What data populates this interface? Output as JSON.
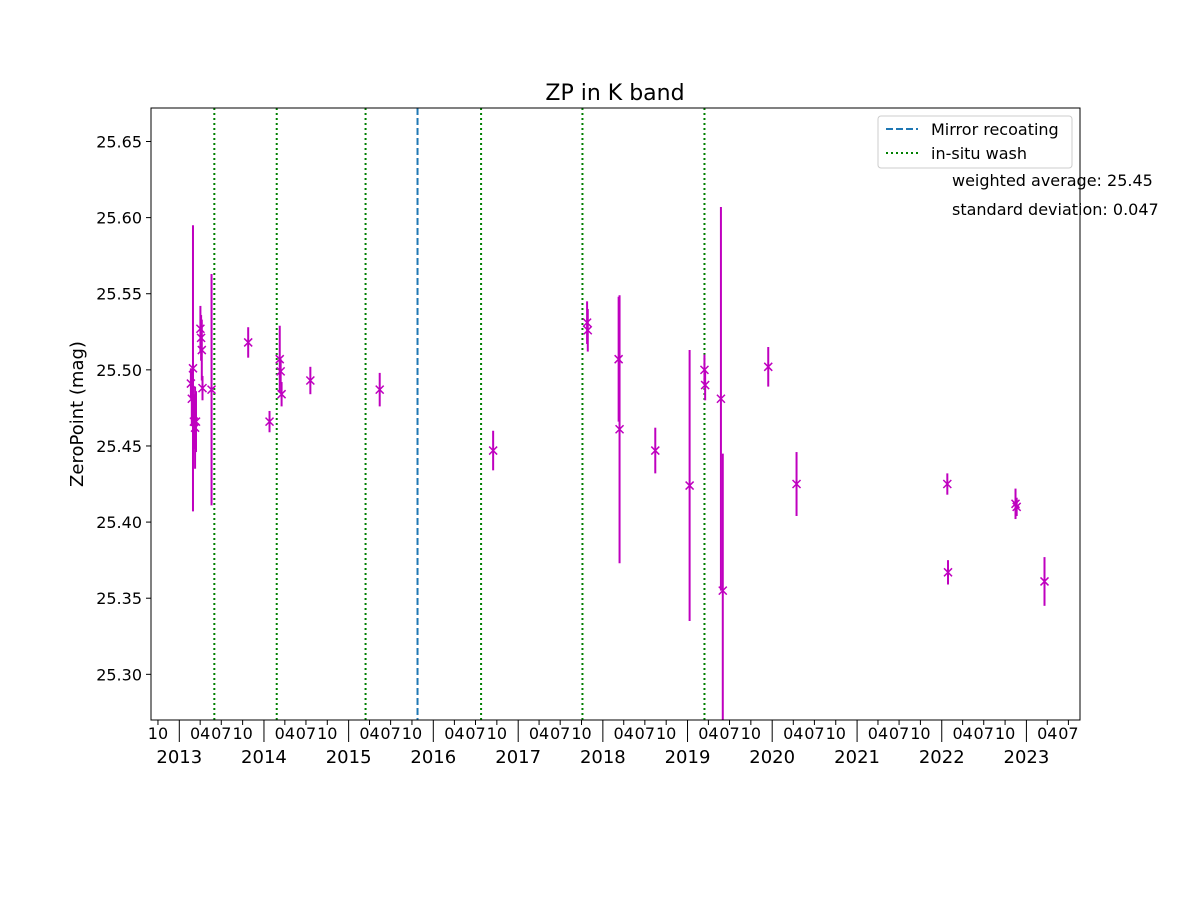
{
  "chart_data": {
    "type": "scatter",
    "title": "ZP in K band",
    "ylabel": "ZeroPoint (mag)",
    "xlabel": "",
    "xlim": [
      "2012-09-01",
      "2023-08-20"
    ],
    "ylim": [
      25.27,
      25.672
    ],
    "yticks": [
      25.3,
      25.35,
      25.4,
      25.45,
      25.5,
      25.55,
      25.6,
      25.65
    ],
    "ytick_labels": [
      "25.30",
      "25.35",
      "25.40",
      "25.45",
      "25.50",
      "25.55",
      "25.60",
      "25.65"
    ],
    "year_ticks": [
      "2013",
      "2014",
      "2015",
      "2016",
      "2017",
      "2018",
      "2019",
      "2020",
      "2021",
      "2022",
      "2023"
    ],
    "month_ticks": [
      "04",
      "07",
      "10"
    ],
    "first_month_tick": {
      "date": "2012-10-01",
      "label": "10"
    },
    "series": [
      {
        "marker": "x",
        "color": "#bf00bf",
        "points": [
          {
            "x": "2013-02-20",
            "y": 25.491,
            "err": 0.01
          },
          {
            "x": "2013-02-24",
            "y": 25.481,
            "err": 0.018
          },
          {
            "x": "2013-03-01",
            "y": 25.501,
            "err": 0.094
          },
          {
            "x": "2013-03-05",
            "y": 25.466,
            "err": 0.018
          },
          {
            "x": "2013-03-10",
            "y": 25.462,
            "err": 0.027
          },
          {
            "x": "2013-03-14",
            "y": 25.466,
            "err": 0.02
          },
          {
            "x": "2013-04-02",
            "y": 25.527,
            "err": 0.015
          },
          {
            "x": "2013-04-05",
            "y": 25.521,
            "err": 0.015
          },
          {
            "x": "2013-04-08",
            "y": 25.513,
            "err": 0.02
          },
          {
            "x": "2013-04-11",
            "y": 25.488,
            "err": 0.008
          },
          {
            "x": "2013-05-20",
            "y": 25.487,
            "err": 0.076
          },
          {
            "x": "2013-10-25",
            "y": 25.518,
            "err": 0.01
          },
          {
            "x": "2014-01-25",
            "y": 25.466,
            "err": 0.007
          },
          {
            "x": "2014-03-10",
            "y": 25.507,
            "err": 0.022
          },
          {
            "x": "2014-03-14",
            "y": 25.499,
            "err": 0.008
          },
          {
            "x": "2014-03-18",
            "y": 25.484,
            "err": 0.008
          },
          {
            "x": "2014-07-20",
            "y": 25.493,
            "err": 0.009
          },
          {
            "x": "2015-05-15",
            "y": 25.487,
            "err": 0.011
          },
          {
            "x": "2016-09-15",
            "y": 25.447,
            "err": 0.013
          },
          {
            "x": "2017-10-25",
            "y": 25.531,
            "err": 0.014
          },
          {
            "x": "2017-10-28",
            "y": 25.526,
            "err": 0.014
          },
          {
            "x": "2018-03-10",
            "y": 25.507,
            "err": 0.041
          },
          {
            "x": "2018-03-14",
            "y": 25.461,
            "err": 0.088
          },
          {
            "x": "2018-08-15",
            "y": 25.447,
            "err": 0.015
          },
          {
            "x": "2019-01-10",
            "y": 25.424,
            "err": 0.089
          },
          {
            "x": "2019-03-15",
            "y": 25.5,
            "err": 0.01
          },
          {
            "x": "2019-03-18",
            "y": 25.49,
            "err": 0.01
          },
          {
            "x": "2019-05-25",
            "y": 25.481,
            "err": 0.126
          },
          {
            "x": "2019-06-02",
            "y": 25.355,
            "err": 0.09
          },
          {
            "x": "2019-12-15",
            "y": 25.502,
            "err": 0.013
          },
          {
            "x": "2020-04-15",
            "y": 25.425,
            "err": 0.021
          },
          {
            "x": "2022-01-25",
            "y": 25.425,
            "err": 0.007
          },
          {
            "x": "2022-01-28",
            "y": 25.367,
            "err": 0.008
          },
          {
            "x": "2022-11-15",
            "y": 25.412,
            "err": 0.01
          },
          {
            "x": "2022-11-20",
            "y": 25.41,
            "err": 0.006
          },
          {
            "x": "2023-03-20",
            "y": 25.361,
            "err": 0.016
          }
        ]
      }
    ],
    "vlines": [
      {
        "x": "2015-10-25",
        "style": "dashed",
        "color": "#1f77b4",
        "legend": "Mirror recoating"
      },
      {
        "x": "2013-06-01",
        "style": "dotted",
        "color": "#008000",
        "legend": "in-situ wash"
      },
      {
        "x": "2014-02-25",
        "style": "dotted",
        "color": "#008000"
      },
      {
        "x": "2015-03-15",
        "style": "dotted",
        "color": "#008000"
      },
      {
        "x": "2016-07-25",
        "style": "dotted",
        "color": "#008000"
      },
      {
        "x": "2017-10-05",
        "style": "dotted",
        "color": "#008000"
      },
      {
        "x": "2019-03-15",
        "style": "dotted",
        "color": "#008000"
      }
    ],
    "legend": {
      "placement": "top-right",
      "entries": [
        {
          "label": "Mirror recoating",
          "style": "dashed",
          "color": "#1f77b4"
        },
        {
          "label": "in-situ wash",
          "style": "dotted",
          "color": "#008000"
        }
      ]
    },
    "annotations": [
      "weighted average: 25.45",
      "standard deviation: 0.047"
    ],
    "grid": false
  }
}
